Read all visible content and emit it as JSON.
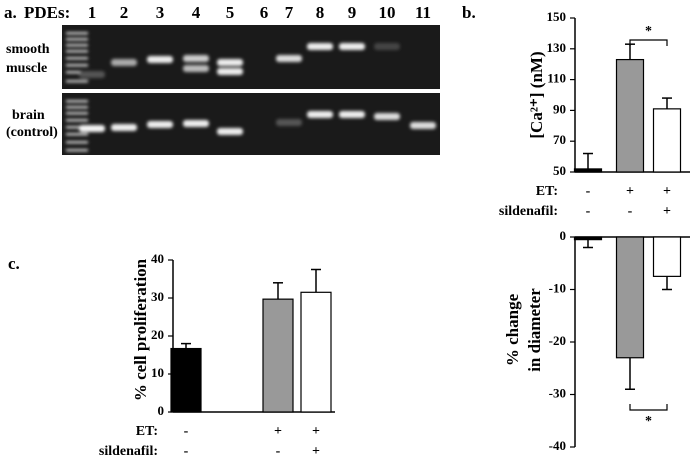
{
  "gel": {
    "panel": "a.",
    "lane_header": "PDEs:",
    "lanes": [
      "1",
      "2",
      "3",
      "4",
      "5",
      "6",
      "7",
      "8",
      "9",
      "10",
      "11"
    ],
    "rows": [
      [
        "smooth",
        "muscle"
      ],
      [
        "brain",
        "(control)"
      ]
    ]
  },
  "chart_data": [
    {
      "type": "bar",
      "panel": "b.",
      "ylabel": [
        "[Ca²⁺] (nM)"
      ],
      "categories": [
        null,
        null,
        null,
        null
      ],
      "values": [
        52,
        null,
        123,
        91
      ],
      "errors": [
        10,
        null,
        10,
        7
      ],
      "colors": [
        "#000000",
        null,
        "#999999",
        "#ffffff"
      ],
      "ylim": [
        50,
        150
      ],
      "yticks": [
        50,
        70,
        90,
        110,
        130,
        150
      ],
      "annotations": [
        "*"
      ],
      "conditions": [
        {
          "name": "ET:",
          "values": [
            "-",
            null,
            "+",
            "+"
          ]
        },
        {
          "name": "sildenafil:",
          "values": [
            "-",
            null,
            "-",
            "+"
          ]
        }
      ]
    },
    {
      "type": "bar",
      "ylabel": [
        "% change",
        "in diameter"
      ],
      "categories": [
        null,
        null,
        null,
        null
      ],
      "values": [
        -0.5,
        null,
        -23,
        -7.5
      ],
      "errors": [
        1.5,
        null,
        6,
        2.5
      ],
      "colors": [
        "#000000",
        null,
        "#999999",
        "#ffffff"
      ],
      "ylim": [
        -40,
        0
      ],
      "yticks": [
        0,
        -10,
        -20,
        -30,
        -40
      ],
      "annotations": [
        "*"
      ]
    },
    {
      "type": "bar",
      "panel": "c.",
      "ylabel": [
        "% cell proliferation"
      ],
      "categories": [
        null,
        null,
        null,
        null
      ],
      "values": [
        16.7,
        null,
        29.7,
        31.5
      ],
      "errors": [
        1.3,
        null,
        4.3,
        6
      ],
      "colors": [
        "#000000",
        null,
        "#999999",
        "#ffffff"
      ],
      "ylim": [
        0,
        40
      ],
      "yticks": [
        0,
        10,
        20,
        30,
        40
      ],
      "conditions": [
        {
          "name": "ET:",
          "values": [
            "-",
            null,
            "+",
            "+"
          ]
        },
        {
          "name": "sildenafil:",
          "values": [
            "-",
            null,
            "-",
            "+"
          ]
        }
      ]
    }
  ]
}
